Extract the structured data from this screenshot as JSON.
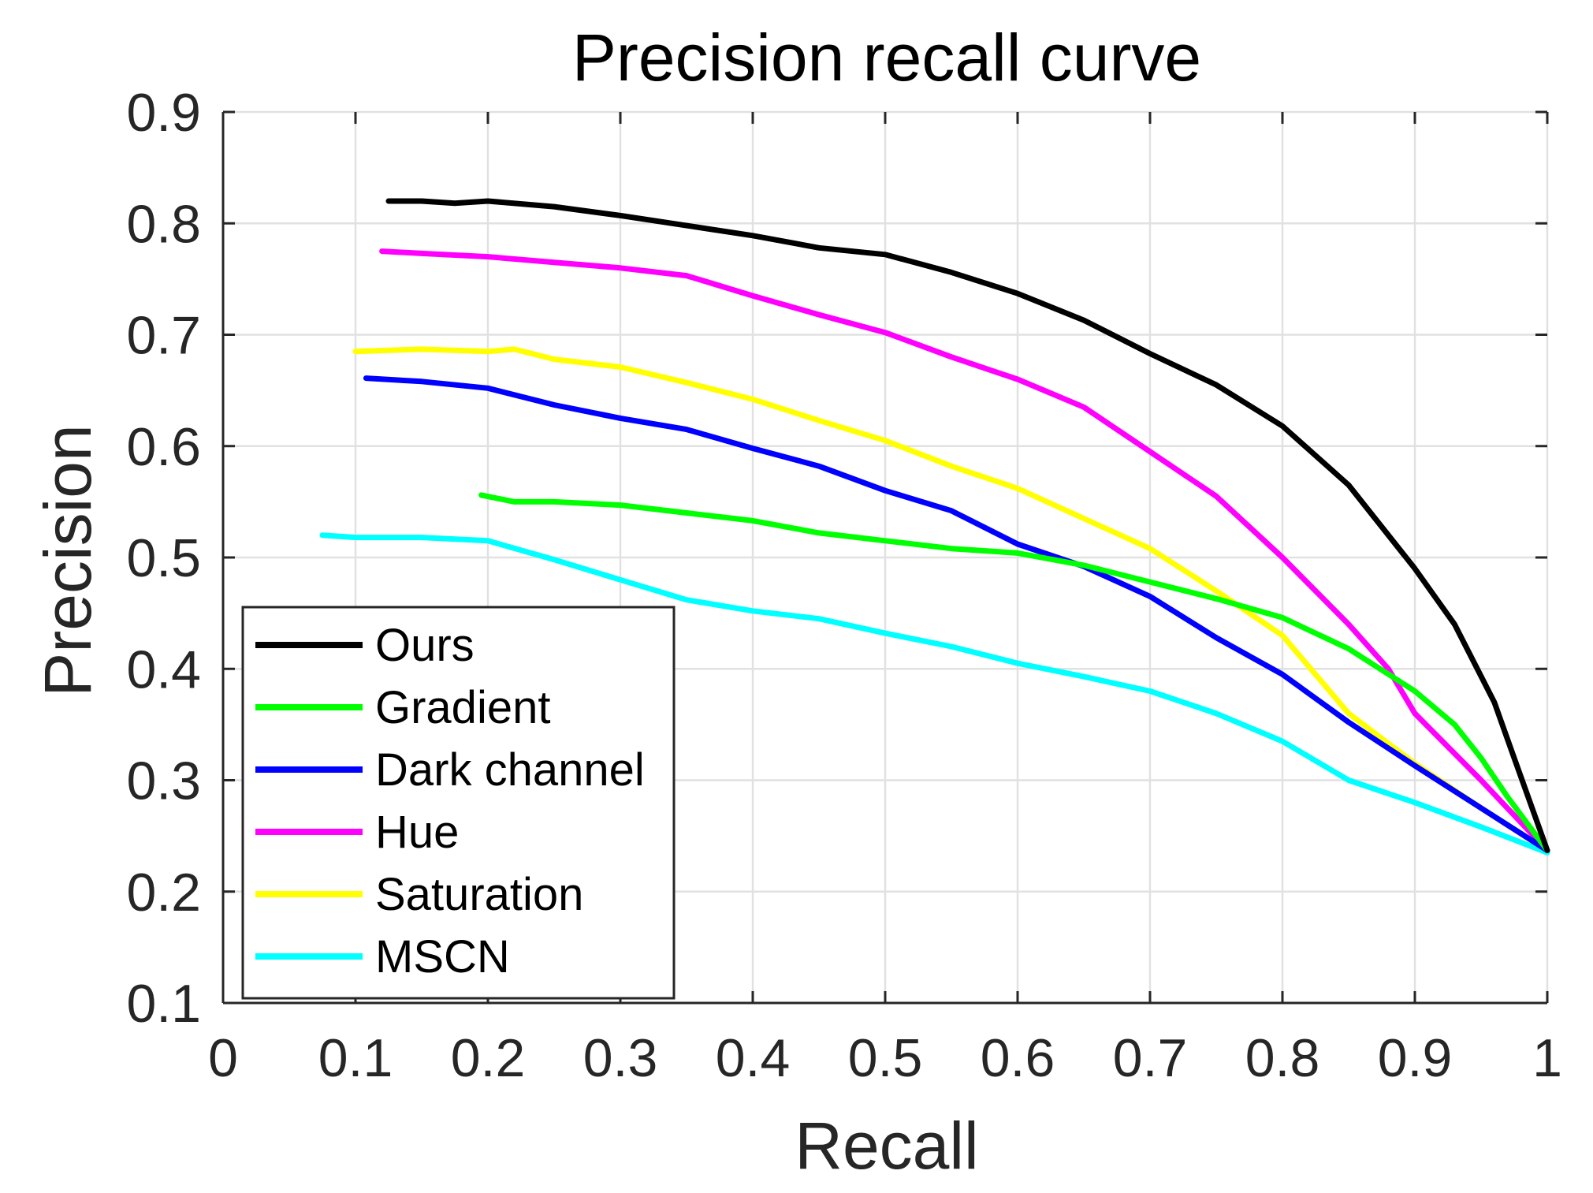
{
  "chart_data": {
    "type": "line",
    "title": "Precision recall curve",
    "xlabel": "Recall",
    "ylabel": "Precision",
    "xlim": [
      0,
      1
    ],
    "ylim": [
      0.1,
      0.9
    ],
    "x_ticks": [
      0,
      0.1,
      0.2,
      0.3,
      0.4,
      0.5,
      0.6,
      0.7,
      0.8,
      0.9,
      1
    ],
    "x_tick_labels": [
      "0",
      "0.1",
      "0.2",
      "0.3",
      "0.4",
      "0.5",
      "0.6",
      "0.7",
      "0.8",
      "0.9",
      "1"
    ],
    "y_ticks": [
      0.1,
      0.2,
      0.3,
      0.4,
      0.5,
      0.6,
      0.7,
      0.8,
      0.9
    ],
    "y_tick_labels": [
      "0.1",
      "0.2",
      "0.3",
      "0.4",
      "0.5",
      "0.6",
      "0.7",
      "0.8",
      "0.9"
    ],
    "grid": true,
    "legend_position": "bottom-left",
    "series": [
      {
        "name": "Ours",
        "color": "#000000",
        "x": [
          0.125,
          0.15,
          0.175,
          0.2,
          0.25,
          0.3,
          0.35,
          0.4,
          0.45,
          0.5,
          0.55,
          0.6,
          0.65,
          0.7,
          0.75,
          0.8,
          0.85,
          0.87,
          0.9,
          0.93,
          0.96,
          0.975,
          1.0
        ],
        "y": [
          0.82,
          0.82,
          0.818,
          0.82,
          0.815,
          0.807,
          0.798,
          0.789,
          0.778,
          0.772,
          0.756,
          0.737,
          0.713,
          0.683,
          0.655,
          0.618,
          0.565,
          0.535,
          0.49,
          0.44,
          0.37,
          0.32,
          0.237
        ]
      },
      {
        "name": "Gradient",
        "color": "#00ff00",
        "x": [
          0.195,
          0.22,
          0.25,
          0.3,
          0.35,
          0.4,
          0.45,
          0.5,
          0.55,
          0.6,
          0.65,
          0.7,
          0.75,
          0.8,
          0.85,
          0.9,
          0.93,
          0.95,
          0.97,
          1.0
        ],
        "y": [
          0.556,
          0.55,
          0.55,
          0.547,
          0.54,
          0.533,
          0.522,
          0.515,
          0.508,
          0.504,
          0.493,
          0.478,
          0.463,
          0.446,
          0.418,
          0.38,
          0.35,
          0.32,
          0.285,
          0.237
        ]
      },
      {
        "name": "Dark channel",
        "color": "#0000ff",
        "x": [
          0.108,
          0.15,
          0.2,
          0.25,
          0.3,
          0.35,
          0.4,
          0.45,
          0.5,
          0.55,
          0.6,
          0.65,
          0.7,
          0.75,
          0.8,
          0.85,
          0.9,
          0.95,
          1.0
        ],
        "y": [
          0.661,
          0.658,
          0.652,
          0.637,
          0.625,
          0.615,
          0.598,
          0.582,
          0.56,
          0.542,
          0.512,
          0.492,
          0.465,
          0.428,
          0.395,
          0.352,
          0.313,
          0.275,
          0.237
        ]
      },
      {
        "name": "Hue",
        "color": "#ff00ff",
        "x": [
          0.12,
          0.15,
          0.2,
          0.25,
          0.3,
          0.35,
          0.4,
          0.45,
          0.5,
          0.55,
          0.6,
          0.65,
          0.7,
          0.75,
          0.8,
          0.85,
          0.88,
          0.9,
          0.95,
          1.0
        ],
        "y": [
          0.775,
          0.773,
          0.77,
          0.765,
          0.76,
          0.753,
          0.735,
          0.718,
          0.702,
          0.68,
          0.66,
          0.635,
          0.595,
          0.555,
          0.5,
          0.44,
          0.4,
          0.36,
          0.3,
          0.237
        ]
      },
      {
        "name": "Saturation",
        "color": "#ffff00",
        "x": [
          0.1,
          0.15,
          0.2,
          0.22,
          0.25,
          0.3,
          0.35,
          0.4,
          0.45,
          0.5,
          0.55,
          0.6,
          0.65,
          0.7,
          0.75,
          0.8,
          0.85,
          0.9,
          0.95,
          1.0
        ],
        "y": [
          0.685,
          0.687,
          0.685,
          0.687,
          0.678,
          0.671,
          0.657,
          0.642,
          0.623,
          0.605,
          0.582,
          0.562,
          0.535,
          0.508,
          0.47,
          0.43,
          0.36,
          0.315,
          0.275,
          0.237
        ]
      },
      {
        "name": "MSCN",
        "color": "#00ffff",
        "x": [
          0.075,
          0.1,
          0.15,
          0.2,
          0.25,
          0.3,
          0.35,
          0.4,
          0.45,
          0.5,
          0.55,
          0.6,
          0.65,
          0.7,
          0.75,
          0.8,
          0.85,
          0.9,
          0.95,
          1.0
        ],
        "y": [
          0.52,
          0.518,
          0.518,
          0.515,
          0.498,
          0.48,
          0.462,
          0.452,
          0.445,
          0.432,
          0.42,
          0.405,
          0.393,
          0.38,
          0.36,
          0.335,
          0.3,
          0.28,
          0.258,
          0.235
        ]
      }
    ]
  }
}
